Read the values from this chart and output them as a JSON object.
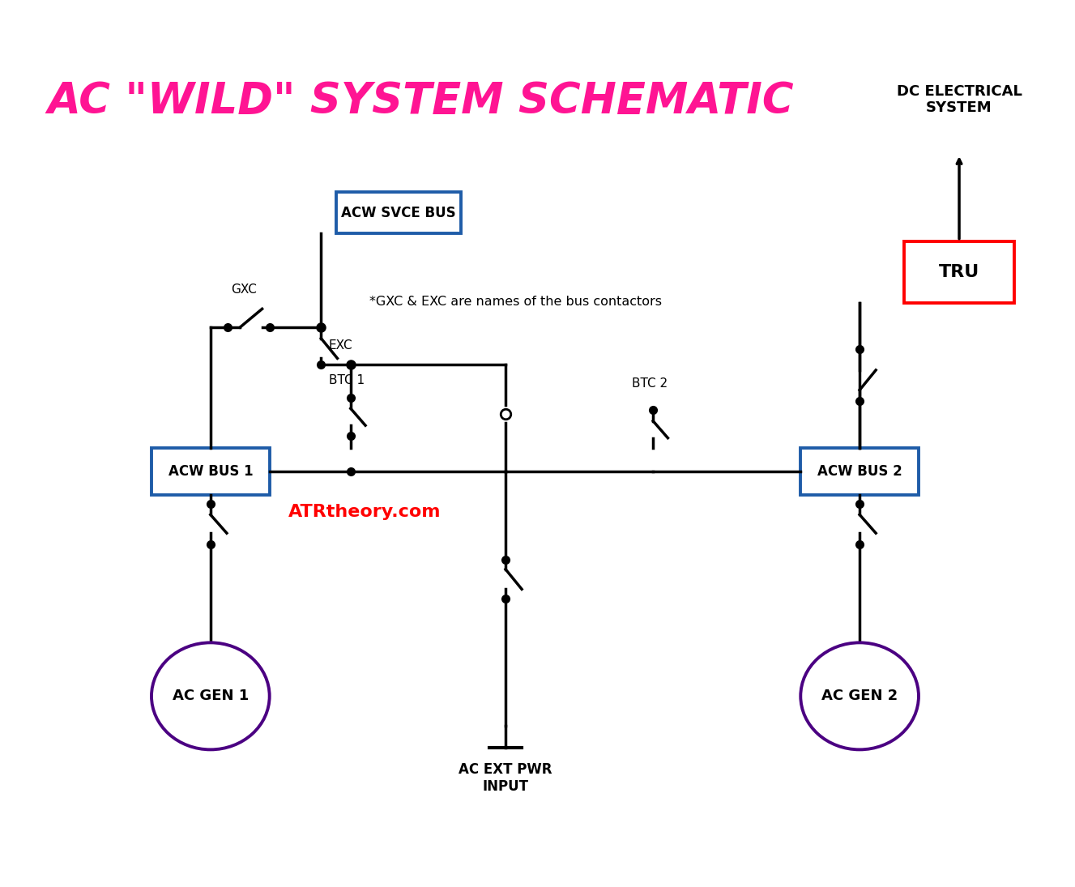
{
  "title": "AC \"WILD\" SYSTEM SCHEMATIC",
  "title_color": "#FF1493",
  "title_fontsize": 38,
  "bg_color": "#FFFFFF",
  "figsize": [
    13.27,
    10.95
  ],
  "dpi": 100,
  "note_text": "*GXC & EXC are names of the bus contactors",
  "watermark": "ATRtheory.com",
  "watermark_color": "#FF0000",
  "dc_label": "DC ELECTRICAL\nSYSTEM",
  "tru_color": "#FF0000",
  "bus_color": "#1E5CA8",
  "gen_color": "#4B0082",
  "line_color": "#000000",
  "line_width": 2.5
}
